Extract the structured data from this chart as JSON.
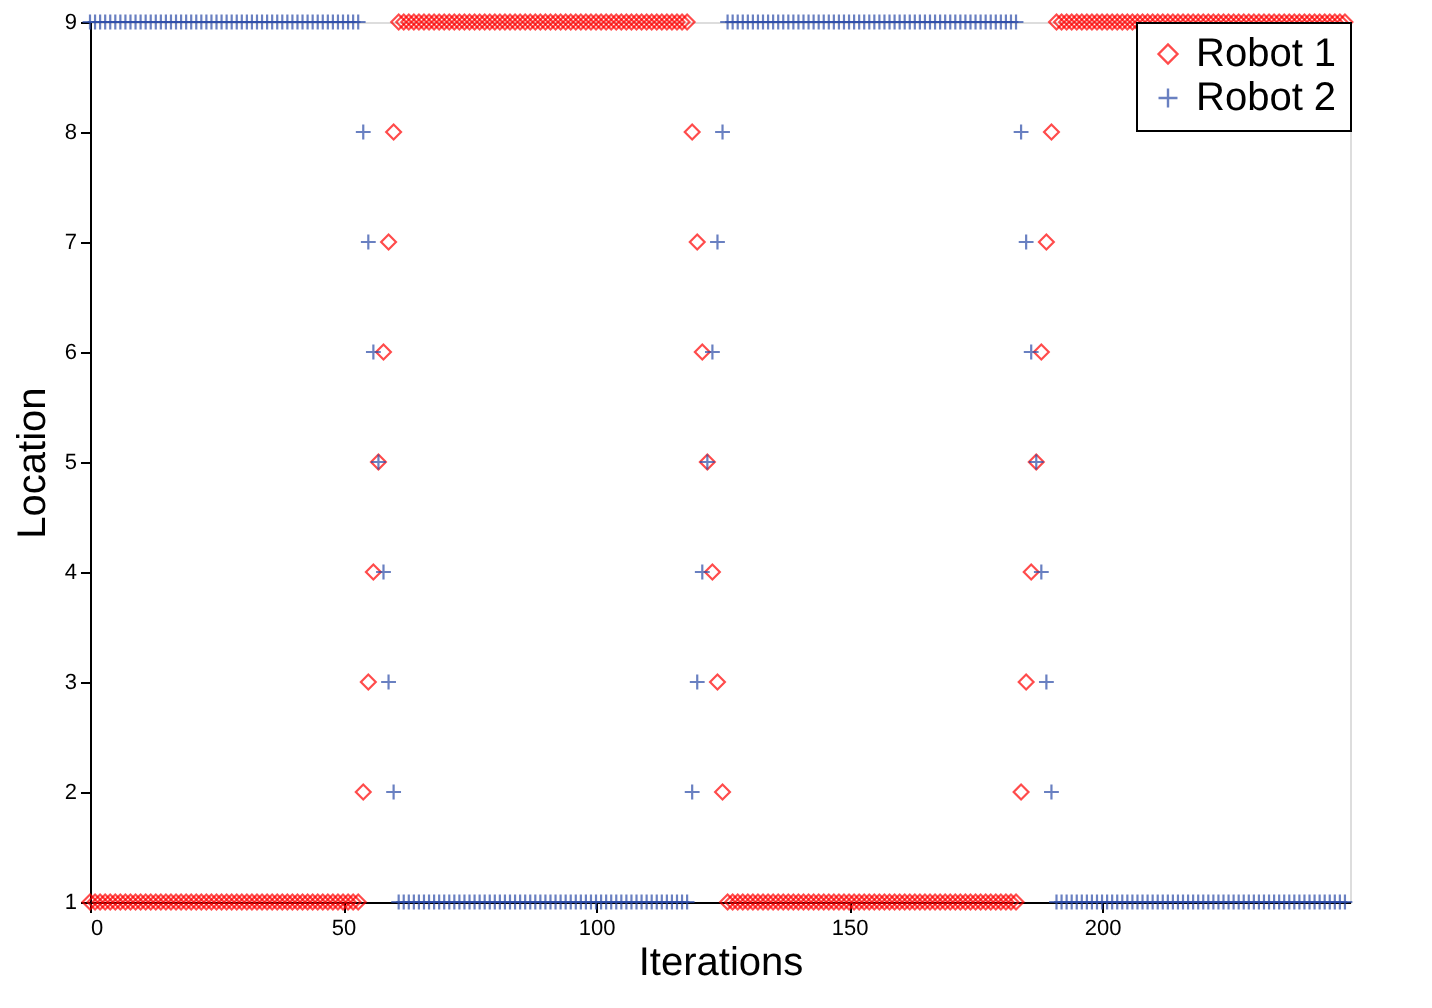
{
  "chart_data": {
    "type": "scatter",
    "xlabel": "Iterations",
    "ylabel": "Location",
    "x": [
      0,
      1,
      2,
      3,
      4,
      5,
      6,
      7,
      8,
      9,
      10,
      11,
      12,
      13,
      14,
      15,
      16,
      17,
      18,
      19,
      20,
      21,
      22,
      23,
      24,
      25,
      26,
      27,
      28,
      29,
      30,
      31,
      32,
      33,
      34,
      35,
      36,
      37,
      38,
      39,
      40,
      41,
      42,
      43,
      44,
      45,
      46,
      47,
      48,
      49,
      50,
      51,
      52,
      53,
      54,
      55,
      56,
      57,
      58,
      59,
      60,
      61,
      62,
      63,
      64,
      65,
      66,
      67,
      68,
      69,
      70,
      71,
      72,
      73,
      74,
      75,
      76,
      77,
      78,
      79,
      80,
      81,
      82,
      83,
      84,
      85,
      86,
      87,
      88,
      89,
      90,
      91,
      92,
      93,
      94,
      95,
      96,
      97,
      98,
      99,
      100,
      101,
      102,
      103,
      104,
      105,
      106,
      107,
      108,
      109,
      110,
      111,
      112,
      113,
      114,
      115,
      116,
      117,
      118,
      119,
      120,
      121,
      122,
      123,
      124,
      125,
      126,
      127,
      128,
      129,
      130,
      131,
      132,
      133,
      134,
      135,
      136,
      137,
      138,
      139,
      140,
      141,
      142,
      143,
      144,
      145,
      146,
      147,
      148,
      149,
      150,
      151,
      152,
      153,
      154,
      155,
      156,
      157,
      158,
      159,
      160,
      161,
      162,
      163,
      164,
      165,
      166,
      167,
      168,
      169,
      170,
      171,
      172,
      173,
      174,
      175,
      176,
      177,
      178,
      179,
      180,
      181,
      182,
      183,
      184,
      185,
      186,
      187,
      188,
      189,
      190,
      191,
      192,
      193,
      194,
      195,
      196,
      197,
      198,
      199,
      200,
      201,
      202,
      203,
      204,
      205,
      206,
      207,
      208,
      209,
      210,
      211,
      212,
      213,
      214,
      215,
      216,
      217,
      218,
      219,
      220,
      221,
      222,
      223,
      224,
      225,
      226,
      227,
      228,
      229,
      230,
      231,
      232,
      233,
      234,
      235,
      236,
      237,
      238,
      239,
      240,
      241,
      242,
      243,
      244,
      245,
      246,
      247,
      248
    ],
    "series": [
      {
        "name": "Robot 1",
        "color": "#ff0000",
        "marker": "diamond",
        "values": [
          1,
          1,
          1,
          1,
          1,
          1,
          1,
          1,
          1,
          1,
          1,
          1,
          1,
          1,
          1,
          1,
          1,
          1,
          1,
          1,
          1,
          1,
          1,
          1,
          1,
          1,
          1,
          1,
          1,
          1,
          1,
          1,
          1,
          1,
          1,
          1,
          1,
          1,
          1,
          1,
          1,
          1,
          1,
          1,
          1,
          1,
          1,
          1,
          1,
          1,
          1,
          1,
          1,
          1,
          2,
          3,
          4,
          5,
          6,
          7,
          8,
          9,
          9,
          9,
          9,
          9,
          9,
          9,
          9,
          9,
          9,
          9,
          9,
          9,
          9,
          9,
          9,
          9,
          9,
          9,
          9,
          9,
          9,
          9,
          9,
          9,
          9,
          9,
          9,
          9,
          9,
          9,
          9,
          9,
          9,
          9,
          9,
          9,
          9,
          9,
          9,
          9,
          9,
          9,
          9,
          9,
          9,
          9,
          9,
          9,
          9,
          9,
          9,
          9,
          9,
          9,
          9,
          9,
          9,
          8,
          7,
          6,
          5,
          4,
          3,
          2,
          1,
          1,
          1,
          1,
          1,
          1,
          1,
          1,
          1,
          1,
          1,
          1,
          1,
          1,
          1,
          1,
          1,
          1,
          1,
          1,
          1,
          1,
          1,
          1,
          1,
          1,
          1,
          1,
          1,
          1,
          1,
          1,
          1,
          1,
          1,
          1,
          1,
          1,
          1,
          1,
          1,
          1,
          1,
          1,
          1,
          1,
          1,
          1,
          1,
          1,
          1,
          1,
          1,
          1,
          1,
          1,
          1,
          1,
          2,
          3,
          4,
          5,
          6,
          7,
          8,
          9,
          9,
          9,
          9,
          9,
          9,
          9,
          9,
          9,
          9,
          9,
          9,
          9,
          9,
          9,
          9,
          9,
          9,
          9,
          9,
          9,
          9,
          9,
          9,
          9,
          9,
          9,
          9,
          9,
          9,
          9,
          9,
          9,
          9,
          9,
          9,
          9,
          9,
          9,
          9,
          9,
          9,
          9,
          9,
          9,
          9,
          9,
          9,
          9,
          9,
          9,
          9,
          9,
          9,
          9,
          9,
          9,
          9
        ]
      },
      {
        "name": "Robot 2",
        "color": "#2b4ba8",
        "marker": "cross",
        "values": [
          9,
          9,
          9,
          9,
          9,
          9,
          9,
          9,
          9,
          9,
          9,
          9,
          9,
          9,
          9,
          9,
          9,
          9,
          9,
          9,
          9,
          9,
          9,
          9,
          9,
          9,
          9,
          9,
          9,
          9,
          9,
          9,
          9,
          9,
          9,
          9,
          9,
          9,
          9,
          9,
          9,
          9,
          9,
          9,
          9,
          9,
          9,
          9,
          9,
          9,
          9,
          9,
          9,
          9,
          8,
          7,
          6,
          5,
          4,
          3,
          2,
          1,
          1,
          1,
          1,
          1,
          1,
          1,
          1,
          1,
          1,
          1,
          1,
          1,
          1,
          1,
          1,
          1,
          1,
          1,
          1,
          1,
          1,
          1,
          1,
          1,
          1,
          1,
          1,
          1,
          1,
          1,
          1,
          1,
          1,
          1,
          1,
          1,
          1,
          1,
          1,
          1,
          1,
          1,
          1,
          1,
          1,
          1,
          1,
          1,
          1,
          1,
          1,
          1,
          1,
          1,
          1,
          1,
          1,
          2,
          3,
          4,
          5,
          6,
          7,
          8,
          9,
          9,
          9,
          9,
          9,
          9,
          9,
          9,
          9,
          9,
          9,
          9,
          9,
          9,
          9,
          9,
          9,
          9,
          9,
          9,
          9,
          9,
          9,
          9,
          9,
          9,
          9,
          9,
          9,
          9,
          9,
          9,
          9,
          9,
          9,
          9,
          9,
          9,
          9,
          9,
          9,
          9,
          9,
          9,
          9,
          9,
          9,
          9,
          9,
          9,
          9,
          9,
          9,
          9,
          9,
          9,
          9,
          9,
          8,
          7,
          6,
          5,
          4,
          3,
          2,
          1,
          1,
          1,
          1,
          1,
          1,
          1,
          1,
          1,
          1,
          1,
          1,
          1,
          1,
          1,
          1,
          1,
          1,
          1,
          1,
          1,
          1,
          1,
          1,
          1,
          1,
          1,
          1,
          1,
          1,
          1,
          1,
          1,
          1,
          1,
          1,
          1,
          1,
          1,
          1,
          1,
          1,
          1,
          1,
          1,
          1,
          1,
          1,
          1,
          1,
          1,
          1,
          1,
          1,
          1,
          1,
          1,
          1
        ]
      }
    ],
    "xlim": [
      0,
      249
    ],
    "xticks": [
      0,
      50,
      100,
      150,
      200
    ],
    "ylim": [
      1,
      9
    ],
    "yticks": [
      1,
      2,
      3,
      4,
      5,
      6,
      7,
      8,
      9
    ],
    "legend": "top right"
  }
}
